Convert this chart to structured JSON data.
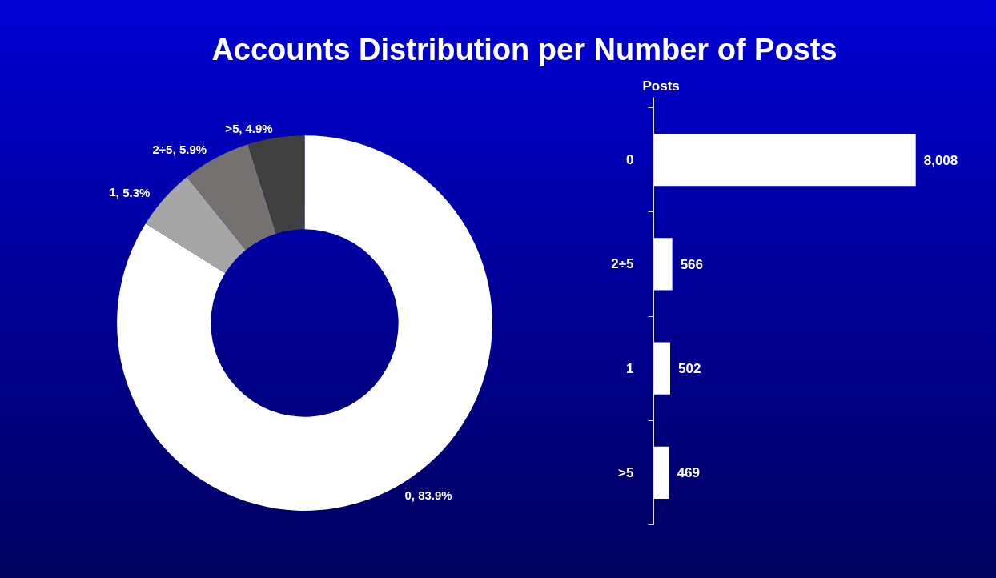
{
  "chart_data": [
    {
      "type": "donut",
      "title": "Accounts Distribution per Number of Posts",
      "categories": [
        "0",
        "1",
        "2÷5",
        ">5"
      ],
      "values": [
        83.9,
        5.3,
        5.9,
        4.9
      ],
      "colors": [
        "#ffffff",
        "#a6a6a6",
        "#767171",
        "#404040"
      ],
      "value_labels": [
        ", 83.9%",
        ", 5.3%",
        ", 5.9%",
        ", 4.9%"
      ]
    },
    {
      "type": "bar",
      "orientation": "horizontal",
      "ylabel": "Posts",
      "categories": [
        "0",
        "2÷5",
        "1",
        ">5"
      ],
      "values": [
        8008,
        566,
        502,
        469
      ],
      "value_labels": [
        "8,008",
        "566",
        "502",
        "469"
      ],
      "color": "#ffffff",
      "tick_labels": "y",
      "grid": false
    }
  ]
}
